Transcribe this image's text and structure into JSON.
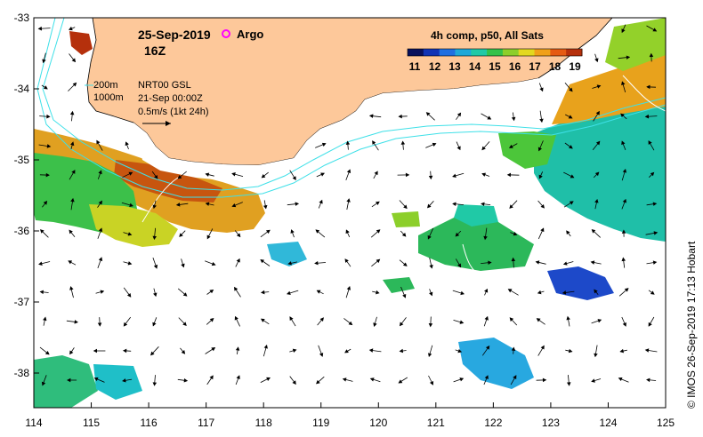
{
  "map": {
    "date": "25-Sep-2019",
    "hour": "16Z",
    "argo_label": "Argo",
    "composite_label": "4h comp, p50, All Sats",
    "colorbar_ticks": [
      "11",
      "12",
      "13",
      "14",
      "15",
      "16",
      "17",
      "18",
      "19"
    ],
    "colorbar_colors": [
      "#08105c",
      "#1033b5",
      "#1f6fe0",
      "#1ea8d8",
      "#20c9a6",
      "#33c24a",
      "#8ccf2a",
      "#e3d81f",
      "#f0a019",
      "#e55a12",
      "#b5300c"
    ],
    "contour_200": "200m",
    "contour_1000": "1000m",
    "nrt_label": "NRT00 GSL",
    "nrt_time": "21-Sep 00:00Z",
    "vector_scale": "0.5m/s (1kt 24h)",
    "credit": "© IMOS 26-Sep-2019 17:13 Hobart",
    "lat_ticks": [
      "-33",
      "-34",
      "-35",
      "-36",
      "-37",
      "-38"
    ],
    "lon_ticks": [
      "114",
      "115",
      "116",
      "117",
      "118",
      "119",
      "120",
      "121",
      "122",
      "123",
      "124",
      "125"
    ],
    "colors": {
      "land": "#fdc89a",
      "contour": "#3ee0e8",
      "argo": "#ff00ff"
    }
  }
}
